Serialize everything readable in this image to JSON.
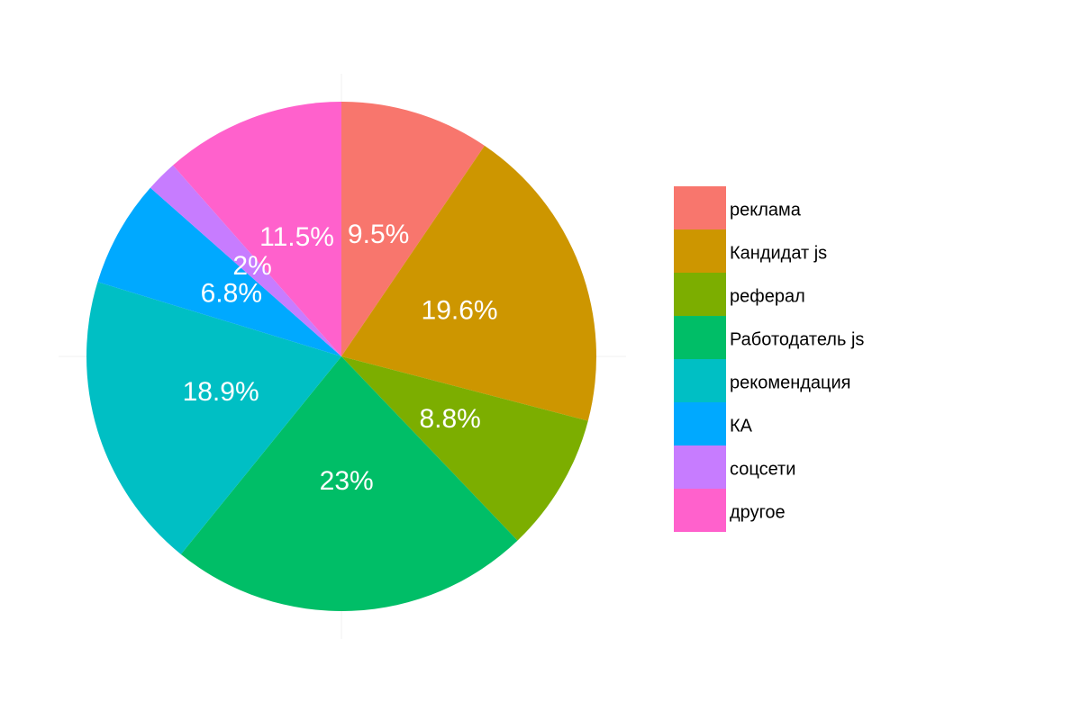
{
  "chart_data": {
    "type": "pie",
    "categories": [
      "реклама",
      "Кандидат js",
      "реферал",
      "Работодатель js",
      "рекомендация",
      "КА",
      "соцсети",
      "другое"
    ],
    "values": [
      9.5,
      19.6,
      8.8,
      23,
      18.9,
      6.8,
      2,
      11.5
    ],
    "value_labels": [
      "9.5%",
      "19.6%",
      "8.8%",
      "23%",
      "18.9%",
      "6.8%",
      "2%",
      "11.5%"
    ],
    "colors": [
      "#F8766D",
      "#CD9600",
      "#7CAE00",
      "#00BE67",
      "#00BFC4",
      "#00A9FF",
      "#C77CFF",
      "#FF61CC"
    ],
    "legend": "right"
  }
}
